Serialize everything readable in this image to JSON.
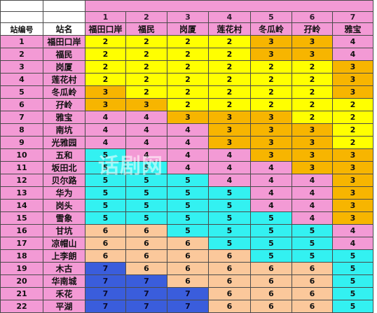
{
  "table": {
    "station_no_header": "站编号",
    "station_name_header": "站名",
    "column_numbers": [
      "1",
      "2",
      "3",
      "4",
      "5",
      "6",
      "7"
    ],
    "column_names": [
      "福田口岸",
      "福民",
      "岗厦",
      "莲花村",
      "冬瓜岭",
      "孖岭",
      "雅宝"
    ],
    "rows": [
      {
        "no": "1",
        "name": "福田口岸",
        "values": [
          "2",
          "2",
          "2",
          "2",
          "3",
          "3",
          "4"
        ]
      },
      {
        "no": "2",
        "name": "福民",
        "values": [
          "2",
          "2",
          "2",
          "2",
          "3",
          "3",
          "4"
        ]
      },
      {
        "no": "3",
        "name": "岗厦",
        "values": [
          "2",
          "2",
          "2",
          "2",
          "2",
          "2",
          "3"
        ]
      },
      {
        "no": "4",
        "name": "莲花村",
        "values": [
          "2",
          "2",
          "2",
          "2",
          "2",
          "2",
          "3"
        ]
      },
      {
        "no": "5",
        "name": "冬瓜岭",
        "values": [
          "3",
          "2",
          "2",
          "2",
          "2",
          "2",
          "3"
        ]
      },
      {
        "no": "6",
        "name": "孖岭",
        "values": [
          "3",
          "3",
          "2",
          "2",
          "2",
          "2",
          "2"
        ]
      },
      {
        "no": "7",
        "name": "雅宝",
        "values": [
          "4",
          "4",
          "3",
          "3",
          "3",
          "2",
          "2"
        ]
      },
      {
        "no": "8",
        "name": "南坑",
        "values": [
          "4",
          "4",
          "4",
          "3",
          "3",
          "3",
          "2"
        ]
      },
      {
        "no": "9",
        "name": "光雅园",
        "values": [
          "4",
          "4",
          "4",
          "3",
          "3",
          "3",
          "2"
        ]
      },
      {
        "no": "10",
        "name": "五和",
        "values": [
          "5",
          "4",
          "4",
          "4",
          "3",
          "3",
          "3"
        ]
      },
      {
        "no": "11",
        "name": "坂田北",
        "values": [
          "5",
          "5",
          "4",
          "4",
          "4",
          "3",
          "3"
        ]
      },
      {
        "no": "12",
        "name": "贝尔路",
        "values": [
          "5",
          "5",
          "5",
          "4",
          "4",
          "4",
          "3"
        ]
      },
      {
        "no": "13",
        "name": "华为",
        "values": [
          "5",
          "5",
          "5",
          "5",
          "4",
          "4",
          "3"
        ]
      },
      {
        "no": "14",
        "name": "岗头",
        "values": [
          "5",
          "5",
          "5",
          "5",
          "4",
          "4",
          "3"
        ]
      },
      {
        "no": "15",
        "name": "雪象",
        "values": [
          "5",
          "5",
          "5",
          "5",
          "5",
          "4",
          "3"
        ]
      },
      {
        "no": "16",
        "name": "甘坑",
        "values": [
          "6",
          "6",
          "5",
          "5",
          "5",
          "5",
          "4"
        ]
      },
      {
        "no": "17",
        "name": "凉帽山",
        "values": [
          "6",
          "6",
          "6",
          "5",
          "5",
          "5",
          "4"
        ]
      },
      {
        "no": "18",
        "name": "上李朗",
        "values": [
          "6",
          "6",
          "6",
          "6",
          "5",
          "5",
          "5"
        ]
      },
      {
        "no": "19",
        "name": "木古",
        "values": [
          "7",
          "6",
          "6",
          "6",
          "6",
          "6",
          "5"
        ]
      },
      {
        "no": "20",
        "name": "华南城",
        "values": [
          "7",
          "7",
          "6",
          "6",
          "6",
          "6",
          "5"
        ]
      },
      {
        "no": "21",
        "name": "禾花",
        "values": [
          "7",
          "7",
          "7",
          "6",
          "6",
          "6",
          "5"
        ]
      },
      {
        "no": "22",
        "name": "平湖",
        "values": [
          "7",
          "7",
          "7",
          "6",
          "6",
          "6",
          "5"
        ]
      }
    ]
  },
  "colors": {
    "1": "#f39ad5",
    "2": "#ffff00",
    "3": "#f7b500",
    "4": "#f39ad5",
    "5": "#33f1f1",
    "6": "#fbc89b",
    "7": "#3a5ddc"
  },
  "watermark": "话剧网"
}
